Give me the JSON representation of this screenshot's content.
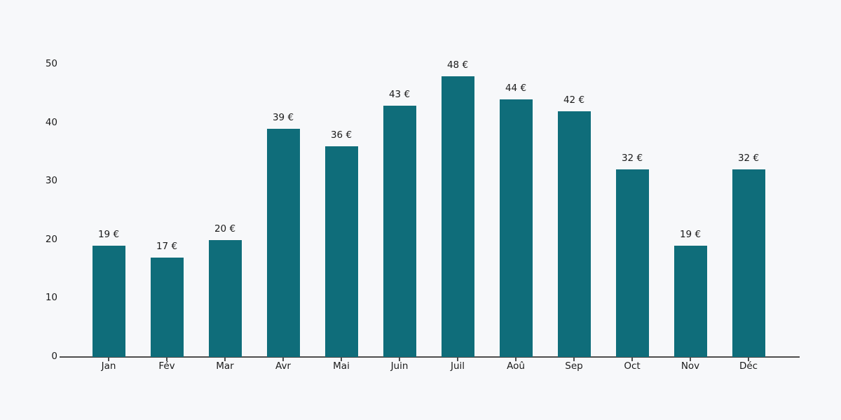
{
  "chart_data": {
    "type": "bar",
    "title": "",
    "xlabel": "",
    "ylabel": "",
    "categories": [
      "Jan",
      "Fév",
      "Mar",
      "Avr",
      "Mai",
      "Juin",
      "Juil",
      "Aoû",
      "Sep",
      "Oct",
      "Nov",
      "Déc"
    ],
    "values": [
      19,
      17,
      20,
      39,
      36,
      43,
      48,
      44,
      42,
      32,
      19,
      32
    ],
    "bar_labels": [
      "19 €",
      "17 €",
      "20 €",
      "39 €",
      "36 €",
      "43 €",
      "48 €",
      "44 €",
      "42 €",
      "32 €",
      "19 €",
      "32 €"
    ],
    "ylim": [
      0,
      50
    ],
    "yticks": [
      0,
      10,
      20,
      30,
      40,
      50
    ],
    "grid": false,
    "legend_position": "none",
    "colors": {
      "bar": "#0f6d7a",
      "background": "#f7f8fa",
      "axis": "#4d4d4d",
      "text": "#1a1a1a"
    }
  }
}
